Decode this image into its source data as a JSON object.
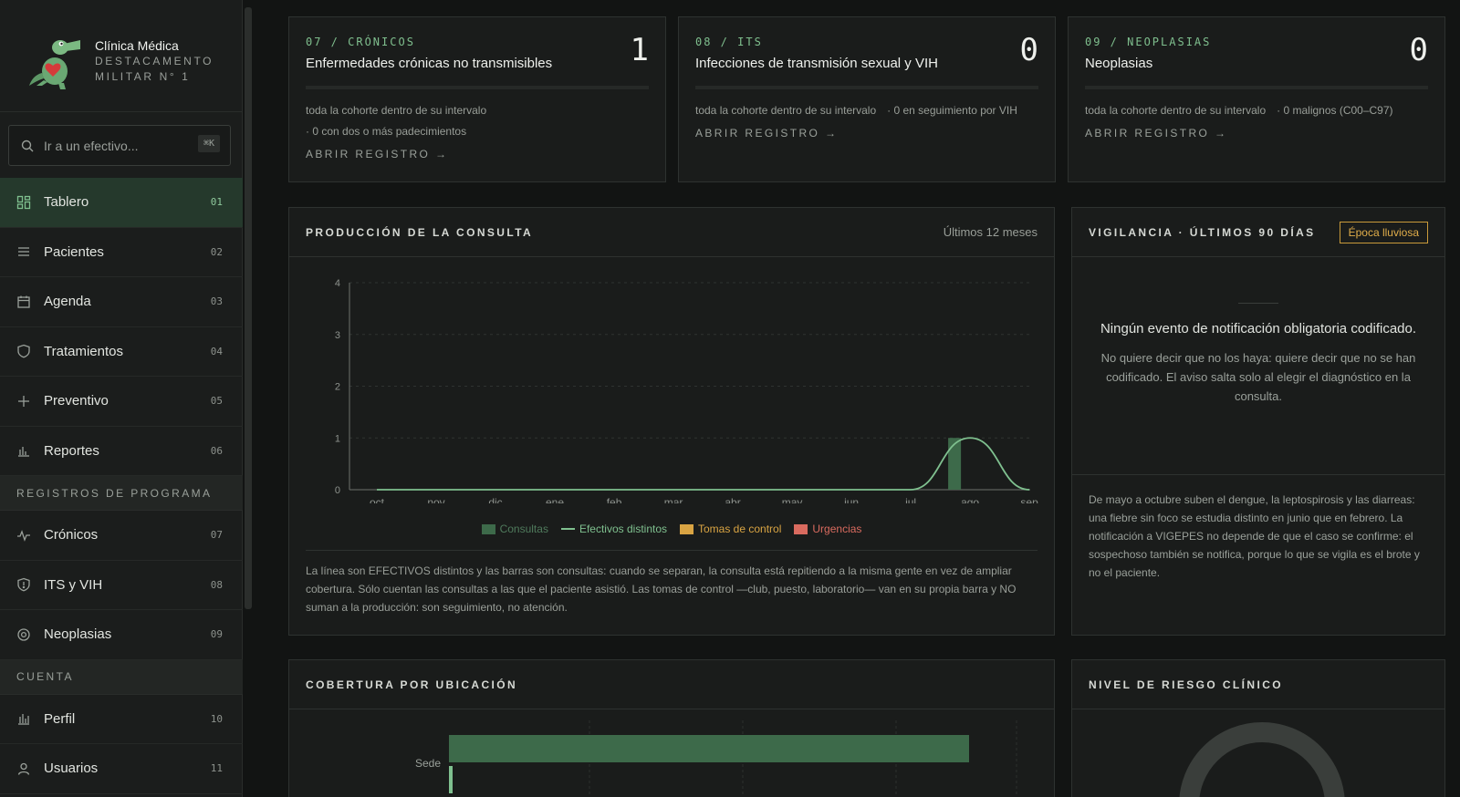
{
  "brand": {
    "title": "Clínica Médica",
    "sub1": "DESTACAMENTO",
    "sub2": "MILITAR N° 1"
  },
  "search": {
    "placeholder": "Ir a un efectivo...",
    "shortcut": "⌘K"
  },
  "nav": {
    "items": [
      {
        "label": "Tablero",
        "num": "01",
        "icon": "grid-icon",
        "active": true
      },
      {
        "label": "Pacientes",
        "num": "02",
        "icon": "list-icon"
      },
      {
        "label": "Agenda",
        "num": "03",
        "icon": "calendar-icon"
      },
      {
        "label": "Tratamientos",
        "num": "04",
        "icon": "shield-icon"
      },
      {
        "label": "Preventivo",
        "num": "05",
        "icon": "plus-icon"
      },
      {
        "label": "Reportes",
        "num": "06",
        "icon": "bar-chart-icon"
      }
    ],
    "section_programs": "REGISTROS DE PROGRAMA",
    "programs": [
      {
        "label": "Crónicos",
        "num": "07",
        "icon": "pulse-icon"
      },
      {
        "label": "ITS y VIH",
        "num": "08",
        "icon": "shield-check-icon"
      },
      {
        "label": "Neoplasias",
        "num": "09",
        "icon": "target-icon"
      }
    ],
    "section_account": "CUENTA",
    "account": [
      {
        "label": "Perfil",
        "num": "10",
        "icon": "bar-chart-icon"
      },
      {
        "label": "Usuarios",
        "num": "11",
        "icon": "user-icon"
      }
    ]
  },
  "registries": [
    {
      "code": "07 / CRÓNICOS",
      "title": "Enfermedades crónicas no transmisibles",
      "count": "1",
      "meta1": "toda la cohorte dentro de su intervalo",
      "meta2": "· 0 con dos o más padecimientos",
      "link": "ABRIR REGISTRO →"
    },
    {
      "code": "08 / ITS",
      "title": "Infecciones de transmisión sexual y VIH",
      "count": "0",
      "meta1": "toda la cohorte dentro de su intervalo",
      "meta2": "· 0 en seguimiento por VIH",
      "link": "ABRIR REGISTRO →"
    },
    {
      "code": "09 / NEOPLASIAS",
      "title": "Neoplasias",
      "count": "0",
      "meta1": "toda la cohorte dentro de su intervalo",
      "meta2": "· 0 malignos (C00–C97)",
      "link": "ABRIR REGISTRO →"
    }
  ],
  "production": {
    "title": "PRODUCCIÓN DE LA CONSULTA",
    "range": "Últimos 12 meses",
    "note": "La línea son EFECTIVOS distintos y las barras son consultas: cuando se separan, la consulta está repitiendo a la misma gente en vez de ampliar cobertura. Sólo cuentan las consultas a las que el paciente asistió. Las tomas de control —club, puesto, laboratorio— van en su propia barra y NO suman a la producción: son seguimiento, no atención."
  },
  "chart_data": {
    "type": "bar",
    "categories": [
      "oct",
      "nov",
      "dic",
      "ene",
      "feb",
      "mar",
      "abr",
      "may",
      "jun",
      "jul",
      "ago",
      "sep"
    ],
    "ylim": [
      0,
      4
    ],
    "yticks": [
      "0",
      "1",
      "2",
      "3",
      "4"
    ],
    "grid": true,
    "legend_position": "bottom",
    "series": [
      {
        "name": "Consultas",
        "kind": "bar",
        "color": "#3d6a4a",
        "values": [
          0,
          0,
          0,
          0,
          0,
          0,
          0,
          0,
          0,
          0,
          1,
          0
        ]
      },
      {
        "name": "Efectivos distintos",
        "kind": "line",
        "color": "#7fc08f",
        "values": [
          0,
          0,
          0,
          0,
          0,
          0,
          0,
          0,
          0,
          0,
          1,
          0
        ]
      },
      {
        "name": "Tomas de control",
        "kind": "bar",
        "color": "#d9a443",
        "values": [
          0,
          0,
          0,
          0,
          0,
          0,
          0,
          0,
          0,
          0,
          0,
          0
        ]
      },
      {
        "name": "Urgencias",
        "kind": "bar",
        "color": "#d96b5f",
        "values": [
          0,
          0,
          0,
          0,
          0,
          0,
          0,
          0,
          0,
          0,
          0,
          0
        ]
      }
    ]
  },
  "vigilance": {
    "title": "VIGILANCIA · ÚLTIMOS 90 DÍAS",
    "badge": "Época lluviosa",
    "main": "Ningún evento de notificación obligatoria codificado.",
    "sub": "No quiere decir que no los haya: quiere decir que no se han codificado. El aviso salta solo al elegir el diagnóstico en la consulta.",
    "foot": "De mayo a octubre suben el dengue, la leptospirosis y las diarreas: una fiebre sin foco se estudia distinto en junio que en febrero. La notificación a VIGEPES no depende de que el caso se confirme: el sospechoso también se notifica, porque lo que se vigila es el brote y no el paciente."
  },
  "coverage": {
    "title": "COBERTURA POR UBICACIÓN",
    "label": "Sede",
    "value": 1
  },
  "risk": {
    "title": "NIVEL DE RIESGO CLÍNICO"
  },
  "colors": {
    "accent": "#7fc08f",
    "bar": "#3d6a4a",
    "warning": "#d9a443",
    "danger": "#d96b5f"
  }
}
